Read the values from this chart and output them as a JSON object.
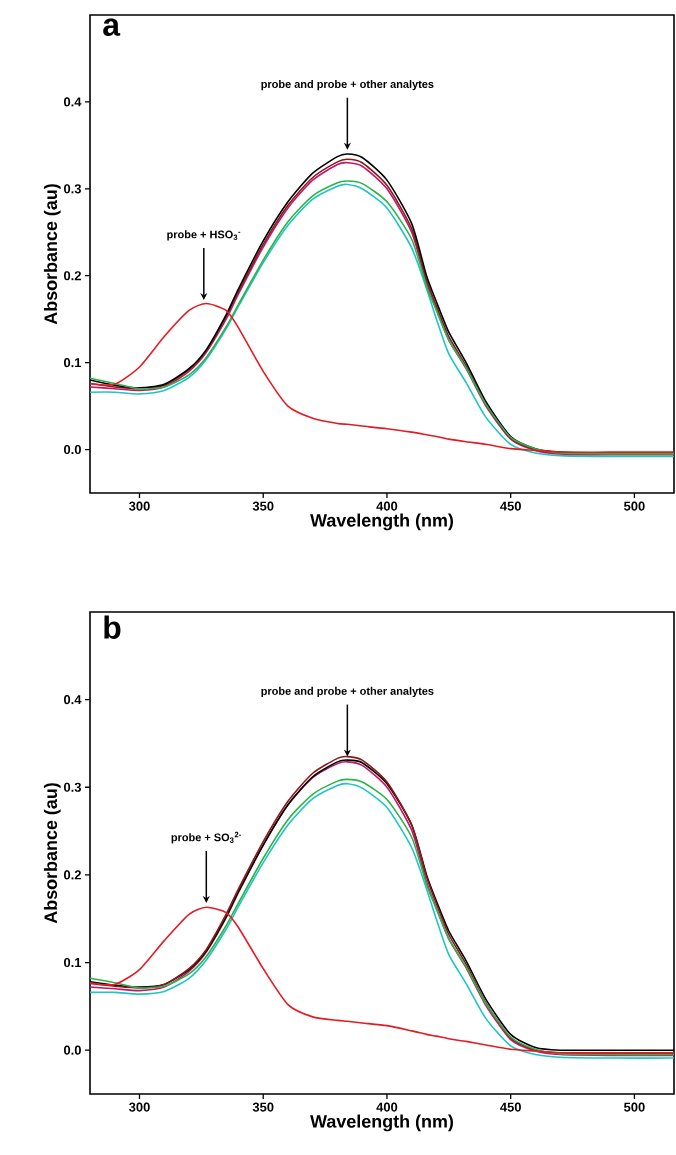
{
  "chart_data": [
    {
      "type": "line",
      "title": "a",
      "xlabel": "Wavelength (nm)",
      "ylabel": "Absorbance (au)",
      "xlim": [
        280,
        516
      ],
      "ylim": [
        -0.05,
        0.5
      ],
      "xticks": [
        300,
        350,
        400,
        450,
        500
      ],
      "yticks": [
        {
          "value": 0,
          "label": "0.0"
        },
        0.1,
        0.2,
        0.3,
        0.4
      ],
      "x": [
        280,
        290,
        300,
        310,
        320,
        327,
        335,
        340,
        350,
        360,
        370,
        380,
        384,
        390,
        400,
        410,
        416,
        420,
        425,
        432,
        440,
        450,
        460,
        470,
        490,
        516
      ],
      "series": [
        {
          "color": "#1fc4c4",
          "values": [
            0.066,
            0.066,
            0.064,
            0.068,
            0.083,
            0.104,
            0.139,
            0.165,
            0.215,
            0.258,
            0.288,
            0.303,
            0.305,
            0.3,
            0.278,
            0.232,
            0.185,
            0.15,
            0.11,
            0.077,
            0.037,
            0.006,
            -0.004,
            -0.007,
            -0.008,
            -0.008
          ]
        },
        {
          "color": "#c0186e",
          "values": [
            0.072,
            0.07,
            0.068,
            0.072,
            0.09,
            0.112,
            0.15,
            0.179,
            0.233,
            0.278,
            0.31,
            0.328,
            0.33,
            0.326,
            0.3,
            0.25,
            0.191,
            0.161,
            0.126,
            0.093,
            0.05,
            0.012,
            -0.001,
            -0.005,
            -0.006,
            -0.006
          ]
        },
        {
          "color": "#8b1a1a",
          "values": [
            0.076,
            0.072,
            0.07,
            0.074,
            0.092,
            0.114,
            0.153,
            0.182,
            0.236,
            0.281,
            0.313,
            0.331,
            0.334,
            0.33,
            0.304,
            0.254,
            0.195,
            0.165,
            0.13,
            0.096,
            0.052,
            0.013,
            0.0,
            -0.004,
            -0.005,
            -0.005
          ]
        },
        {
          "color": "#000000",
          "values": [
            0.08,
            0.074,
            0.071,
            0.075,
            0.093,
            0.115,
            0.155,
            0.185,
            0.24,
            0.285,
            0.318,
            0.337,
            0.34,
            0.336,
            0.31,
            0.26,
            0.2,
            0.17,
            0.135,
            0.1,
            0.055,
            0.015,
            0.001,
            -0.003,
            -0.004,
            -0.004
          ]
        },
        {
          "color": "#2db34a",
          "values": [
            0.082,
            0.076,
            0.07,
            0.072,
            0.086,
            0.106,
            0.141,
            0.167,
            0.218,
            0.262,
            0.292,
            0.307,
            0.309,
            0.306,
            0.285,
            0.242,
            0.188,
            0.16,
            0.126,
            0.094,
            0.052,
            0.014,
            0.001,
            -0.004,
            -0.005,
            -0.005
          ]
        },
        {
          "color": "#e31b23",
          "values": [
            0.076,
            0.075,
            0.095,
            0.13,
            0.16,
            0.168,
            0.16,
            0.14,
            0.09,
            0.05,
            0.036,
            0.03,
            0.029,
            0.027,
            0.024,
            0.02,
            0.017,
            0.015,
            0.012,
            0.009,
            0.006,
            0.001,
            -0.001,
            -0.003,
            -0.003,
            -0.003
          ]
        }
      ],
      "annotations": [
        {
          "text": "probe and probe + other analytes",
          "x": 384,
          "y": 0.345
        },
        {
          "text": "probe + HSO$_{3}$$^{-}$",
          "x": 326,
          "y": 0.172
        }
      ]
    },
    {
      "type": "line",
      "title": "b",
      "xlabel": "Wavelength (nm)",
      "ylabel": "Absorbance (au)",
      "xlim": [
        280,
        516
      ],
      "ylim": [
        -0.05,
        0.5
      ],
      "xticks": [
        300,
        350,
        400,
        450,
        500
      ],
      "yticks": [
        {
          "value": 0,
          "label": "0.0"
        },
        0.1,
        0.2,
        0.3,
        0.4
      ],
      "x": [
        280,
        290,
        300,
        310,
        320,
        327,
        335,
        340,
        350,
        360,
        370,
        380,
        384,
        390,
        400,
        410,
        416,
        420,
        425,
        432,
        440,
        450,
        460,
        470,
        490,
        516
      ],
      "series": [
        {
          "color": "#1fc4c4",
          "values": [
            0.066,
            0.066,
            0.064,
            0.067,
            0.082,
            0.103,
            0.138,
            0.164,
            0.214,
            0.257,
            0.287,
            0.302,
            0.304,
            0.299,
            0.277,
            0.231,
            0.184,
            0.149,
            0.109,
            0.076,
            0.036,
            0.005,
            -0.005,
            -0.008,
            -0.009,
            -0.009
          ]
        },
        {
          "color": "#c0186e",
          "values": [
            0.072,
            0.07,
            0.068,
            0.072,
            0.09,
            0.112,
            0.151,
            0.18,
            0.234,
            0.28,
            0.311,
            0.327,
            0.329,
            0.325,
            0.3,
            0.251,
            0.192,
            0.162,
            0.127,
            0.094,
            0.051,
            0.012,
            -0.001,
            -0.005,
            -0.006,
            -0.006
          ]
        },
        {
          "color": "#000000",
          "values": [
            0.078,
            0.074,
            0.072,
            0.075,
            0.092,
            0.113,
            0.152,
            0.181,
            0.234,
            0.28,
            0.312,
            0.329,
            0.331,
            0.328,
            0.304,
            0.257,
            0.2,
            0.17,
            0.136,
            0.102,
            0.058,
            0.018,
            0.003,
            0.0,
            0.0,
            0.0
          ]
        },
        {
          "color": "#8b1a1a",
          "values": [
            0.076,
            0.073,
            0.071,
            0.075,
            0.093,
            0.115,
            0.155,
            0.184,
            0.238,
            0.284,
            0.316,
            0.333,
            0.335,
            0.331,
            0.306,
            0.257,
            0.198,
            0.167,
            0.132,
            0.098,
            0.054,
            0.014,
            0.0,
            -0.003,
            -0.004,
            -0.004
          ]
        },
        {
          "color": "#2db34a",
          "values": [
            0.082,
            0.077,
            0.071,
            0.073,
            0.087,
            0.107,
            0.142,
            0.168,
            0.219,
            0.263,
            0.292,
            0.307,
            0.309,
            0.306,
            0.286,
            0.243,
            0.189,
            0.161,
            0.127,
            0.095,
            0.053,
            0.015,
            0.001,
            -0.004,
            -0.005,
            -0.005
          ]
        },
        {
          "color": "#e31b23",
          "values": [
            0.077,
            0.075,
            0.092,
            0.125,
            0.155,
            0.163,
            0.157,
            0.14,
            0.093,
            0.052,
            0.038,
            0.034,
            0.033,
            0.031,
            0.028,
            0.022,
            0.018,
            0.016,
            0.013,
            0.01,
            0.006,
            0.001,
            -0.001,
            -0.003,
            -0.003,
            -0.003
          ]
        }
      ],
      "annotations": [
        {
          "text": "probe and probe + other analytes",
          "x": 384,
          "y": 0.335
        },
        {
          "text": "probe + SO$_{3}$$^{2-}$",
          "x": 327,
          "y": 0.168
        }
      ]
    }
  ]
}
